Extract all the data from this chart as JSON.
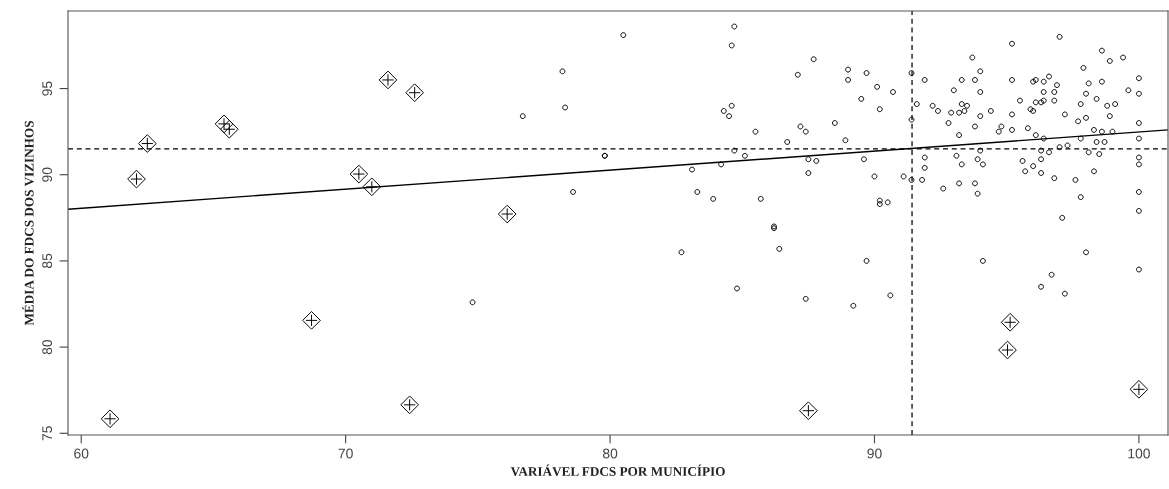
{
  "chart_data": {
    "type": "scatter",
    "xlabel": "VARIÁVEL FDCS POR MUNICÍPIO",
    "ylabel": "MÉDIA DO FDCS DOS VIZINHOS",
    "xlim": [
      59.5,
      101.1
    ],
    "ylim": [
      74.9,
      99.5
    ],
    "xticks": [
      60,
      70,
      80,
      90,
      100
    ],
    "yticks": [
      75,
      80,
      85,
      90,
      95
    ],
    "grid": false,
    "ref_lines": [
      {
        "axis": "x",
        "value": 91.42,
        "line_style": "dashed",
        "color": "#000000"
      },
      {
        "axis": "y",
        "value": 91.5,
        "line_style": "dashed",
        "color": "#000000"
      }
    ],
    "series": [
      {
        "type": "line",
        "color": "#000000",
        "line_style": "solid",
        "marker": "none",
        "x": [
          59.5,
          101.1
        ],
        "values": [
          88.0,
          92.6
        ]
      },
      {
        "color": "#000000",
        "marker": "circle",
        "x": [
          79.8,
          80.5,
          84.7,
          84.6,
          87.7,
          87.1,
          89.0,
          89.0,
          89.7,
          90.1,
          90.7,
          89.5,
          90.2,
          84.3,
          84.6,
          84.5,
          85.5,
          87.2,
          87.4,
          88.5,
          88.9,
          86.7,
          84.7,
          85.1,
          84.2,
          83.1,
          83.3,
          83.9,
          85.7,
          86.2,
          87.5,
          87.8,
          87.5,
          89.6,
          90.0,
          90.2,
          90.2,
          90.5,
          91.1,
          91.4,
          91.4,
          91.4,
          91.8,
          91.6,
          91.9,
          92.2,
          92.4,
          91.9,
          91.9,
          92.6,
          92.9,
          93.0,
          92.8,
          93.2,
          93.2,
          93.3,
          93.3,
          93.4,
          93.5,
          93.7,
          93.8,
          94.0,
          94.0,
          94.0,
          93.8,
          94.4,
          94.7,
          94.8,
          93.1,
          93.3,
          94.0,
          93.9,
          94.1,
          93.2,
          93.8,
          93.9,
          95.2,
          95.2,
          95.2,
          95.2,
          95.5,
          95.8,
          95.9,
          96.0,
          96.0,
          96.1,
          96.1,
          96.3,
          96.4,
          96.4,
          96.4,
          96.6,
          96.9,
          96.8,
          96.8,
          96.1,
          96.4,
          96.3,
          96.3,
          96.6,
          96.3,
          96.0,
          95.7,
          95.6,
          96.8,
          97.0,
          97.0,
          97.3,
          97.2,
          97.6,
          97.7,
          97.8,
          97.8,
          97.8,
          97.9,
          98.0,
          98.0,
          98.1,
          98.1,
          98.3,
          98.3,
          98.4,
          98.5,
          98.4,
          98.6,
          98.6,
          98.6,
          98.7,
          98.8,
          98.9,
          98.9,
          99.0,
          99.1,
          99.4,
          99.6,
          100.0,
          100.0,
          100.0,
          100.0,
          100.0,
          100.0,
          100.0,
          100.0,
          97.1,
          82.7,
          84.8,
          86.2,
          86.4,
          87.4,
          89.2,
          89.7,
          90.6,
          94.1,
          96.3,
          96.7,
          97.2,
          98.0,
          100.0,
          78.2,
          76.7,
          78.3,
          79.8,
          78.6,
          74.8
        ],
        "values": [
          91.1,
          98.1,
          98.6,
          97.5,
          96.7,
          95.8,
          96.1,
          95.5,
          95.9,
          95.1,
          94.8,
          94.4,
          93.8,
          93.7,
          94.0,
          93.4,
          92.5,
          92.8,
          92.5,
          93.0,
          92.0,
          91.9,
          91.4,
          91.1,
          90.6,
          90.3,
          89.0,
          88.6,
          88.6,
          87.0,
          90.9,
          90.8,
          90.1,
          90.9,
          89.9,
          88.5,
          88.3,
          88.4,
          89.9,
          95.9,
          93.2,
          89.7,
          89.7,
          94.1,
          95.5,
          94.0,
          93.7,
          91.0,
          90.4,
          89.2,
          93.6,
          94.9,
          93.0,
          93.6,
          92.3,
          95.5,
          94.1,
          93.7,
          94.0,
          96.8,
          95.5,
          96.0,
          94.8,
          93.4,
          92.8,
          93.7,
          92.5,
          92.8,
          91.1,
          90.6,
          91.4,
          90.9,
          90.6,
          89.5,
          89.5,
          88.9,
          97.6,
          95.5,
          93.5,
          92.6,
          94.3,
          92.7,
          93.8,
          93.7,
          95.4,
          95.5,
          94.2,
          94.2,
          94.3,
          95.4,
          94.8,
          95.7,
          95.2,
          94.8,
          94.3,
          92.3,
          92.1,
          91.4,
          90.9,
          91.3,
          90.1,
          90.5,
          90.2,
          90.8,
          89.8,
          98.0,
          91.6,
          91.7,
          93.5,
          89.7,
          93.1,
          94.1,
          92.1,
          88.7,
          96.2,
          93.3,
          94.7,
          95.3,
          91.3,
          92.6,
          90.2,
          94.4,
          91.2,
          91.9,
          95.4,
          97.2,
          92.5,
          91.9,
          94.0,
          93.4,
          96.6,
          92.5,
          94.1,
          96.8,
          94.9,
          95.6,
          94.7,
          93.0,
          92.1,
          91.0,
          90.6,
          89.0,
          87.9,
          87.5,
          85.5,
          83.4,
          86.9,
          85.7,
          82.8,
          82.4,
          85.0,
          83.0,
          85.0,
          83.5,
          84.2,
          83.1,
          85.5,
          84.5,
          96.0,
          93.4,
          93.9,
          91.1,
          89.0,
          82.6
        ]
      },
      {
        "color": "#000000",
        "marker": "diamond",
        "x": [
          61.09,
          62.09,
          62.5,
          65.4,
          65.6,
          68.71,
          70.5,
          70.99,
          71.6,
          72.42,
          72.61,
          76.11,
          87.5,
          95.13,
          95.03,
          100.0
        ],
        "values": [
          75.84,
          89.75,
          91.81,
          92.95,
          92.64,
          81.55,
          90.04,
          89.3,
          95.5,
          76.65,
          94.76,
          87.72,
          76.31,
          81.44,
          79.83,
          77.55
        ]
      }
    ]
  }
}
